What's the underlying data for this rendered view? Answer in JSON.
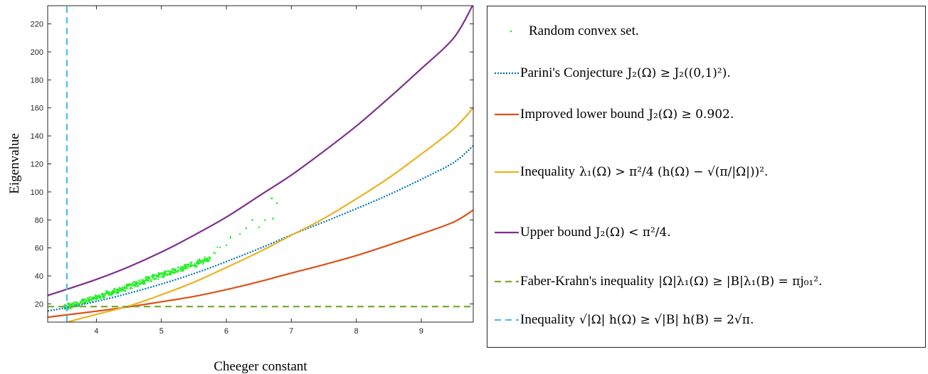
{
  "chart_data": {
    "type": "line",
    "xlabel": "Cheeger constant",
    "ylabel": "Eigenvalue",
    "xlim": [
      3.25,
      9.8
    ],
    "ylim": [
      7,
      233
    ],
    "x_ticks": [
      4,
      5,
      6,
      7,
      8,
      9
    ],
    "y_ticks": [
      20,
      40,
      60,
      80,
      100,
      120,
      140,
      160,
      180,
      200,
      220
    ],
    "grid": false,
    "legend_placement": "outside-right",
    "series": [
      {
        "name": "Random convex set.",
        "style": "scatter",
        "color": "#22ee22",
        "points": [
          [
            3.55,
            17
          ],
          [
            3.6,
            18
          ],
          [
            3.7,
            19
          ],
          [
            3.8,
            21
          ],
          [
            3.9,
            22.5
          ],
          [
            4.0,
            24
          ],
          [
            4.1,
            25
          ],
          [
            4.2,
            27
          ],
          [
            4.3,
            28.5
          ],
          [
            4.4,
            30
          ],
          [
            4.5,
            32
          ],
          [
            4.6,
            33.5
          ],
          [
            4.7,
            35
          ],
          [
            4.8,
            37
          ],
          [
            4.9,
            38.5
          ],
          [
            5.0,
            40
          ],
          [
            5.1,
            41.5
          ],
          [
            5.2,
            43
          ],
          [
            5.3,
            44.5
          ],
          [
            5.4,
            46
          ],
          [
            5.5,
            47.5
          ],
          [
            5.6,
            49.5
          ],
          [
            5.7,
            51
          ],
          [
            5.8,
            56
          ],
          [
            5.9,
            60
          ],
          [
            6.0,
            62
          ],
          [
            6.1,
            66
          ],
          [
            6.2,
            70
          ],
          [
            6.3,
            74
          ],
          [
            6.4,
            80
          ],
          [
            6.5,
            75
          ],
          [
            6.6,
            80
          ],
          [
            6.7,
            95
          ],
          [
            6.72,
            81
          ],
          [
            6.78,
            92
          ]
        ]
      },
      {
        "name": "Parini's Conjecture",
        "style": "dotted",
        "color": "#0072bd",
        "points": [
          [
            3.25,
            15
          ],
          [
            3.55,
            17.4
          ],
          [
            4,
            21.8
          ],
          [
            4.5,
            27.6
          ],
          [
            5,
            34.2
          ],
          [
            5.5,
            41.6
          ],
          [
            6,
            50.2
          ],
          [
            6.5,
            59.4
          ],
          [
            7,
            69.3
          ],
          [
            7.5,
            78.5
          ],
          [
            8,
            88
          ],
          [
            8.5,
            98
          ],
          [
            9,
            109
          ],
          [
            9.5,
            121
          ],
          [
            9.8,
            133
          ]
        ]
      },
      {
        "name": "Improved lower bound",
        "style": "solid",
        "color": "#d95319",
        "points": [
          [
            3.25,
            10.5
          ],
          [
            3.55,
            12.2
          ],
          [
            4,
            14.8
          ],
          [
            4.5,
            17.9
          ],
          [
            5,
            21.5
          ],
          [
            5.5,
            25.3
          ],
          [
            6,
            30.2
          ],
          [
            6.5,
            35.8
          ],
          [
            7,
            42
          ],
          [
            7.5,
            48
          ],
          [
            8,
            54.5
          ],
          [
            8.5,
            62
          ],
          [
            9,
            70
          ],
          [
            9.5,
            78.5
          ],
          [
            9.8,
            87
          ]
        ]
      },
      {
        "name": "Inequality lambda1",
        "style": "solid",
        "color": "#edb120",
        "points": [
          [
            3.55,
            7
          ],
          [
            4,
            12.5
          ],
          [
            4.5,
            18.5
          ],
          [
            5,
            26.5
          ],
          [
            5.5,
            35.5
          ],
          [
            6,
            46
          ],
          [
            6.5,
            57
          ],
          [
            7,
            69
          ],
          [
            7.5,
            81
          ],
          [
            8,
            95
          ],
          [
            8.5,
            110
          ],
          [
            9,
            127
          ],
          [
            9.5,
            145
          ],
          [
            9.8,
            160
          ]
        ]
      },
      {
        "name": "Upper bound",
        "style": "solid",
        "color": "#7e2f8e",
        "points": [
          [
            3.25,
            26
          ],
          [
            3.55,
            30.5
          ],
          [
            4,
            37.5
          ],
          [
            4.5,
            46.5
          ],
          [
            5,
            57
          ],
          [
            5.5,
            69
          ],
          [
            6,
            82
          ],
          [
            6.5,
            97
          ],
          [
            7,
            112
          ],
          [
            7.5,
            129
          ],
          [
            8,
            147
          ],
          [
            8.5,
            167
          ],
          [
            9,
            188
          ],
          [
            9.5,
            210
          ],
          [
            9.8,
            234
          ]
        ]
      },
      {
        "name": "Faber-Krahn's inequality",
        "style": "dashed",
        "color": "#77ac30",
        "points": [
          [
            3.25,
            18.1
          ],
          [
            9.8,
            18.1
          ]
        ]
      },
      {
        "name": "Inequality Cheeger",
        "style": "dashed-vertical",
        "color": "#4dbeee",
        "points": [
          [
            3.545,
            7
          ],
          [
            3.545,
            233
          ]
        ]
      }
    ]
  },
  "legend": {
    "items": [
      {
        "sample": "points",
        "color": "#22ee22",
        "text": "Random convex set.",
        "math": ""
      },
      {
        "sample": "dotted",
        "color": "#0072bd",
        "text": "Parini's Conjecture",
        "math": "J₂(Ω) ≥ J₂((0,1)²)."
      },
      {
        "sample": "solid",
        "color": "#d95319",
        "text": "Improved lower bound",
        "math": "J₂(Ω) ≥ 0.902."
      },
      {
        "sample": "solid",
        "color": "#edb120",
        "text": "Inequality",
        "math": "λ₁(Ω) > π²/4 (h(Ω) − √(π/|Ω|))²."
      },
      {
        "sample": "solid",
        "color": "#7e2f8e",
        "text": "Upper bound",
        "math": "J₂(Ω) < π²/4."
      },
      {
        "sample": "dashed",
        "color": "#77ac30",
        "text": "Faber-Krahn's inequality",
        "math": "|Ω|λ₁(Ω) ≥ |B|λ₁(B) = πj₀₁²."
      },
      {
        "sample": "dashed",
        "color": "#4dbeee",
        "text": "Inequality",
        "math": "√|Ω| h(Ω) ≥ √|B| h(B) = 2√π."
      }
    ]
  }
}
